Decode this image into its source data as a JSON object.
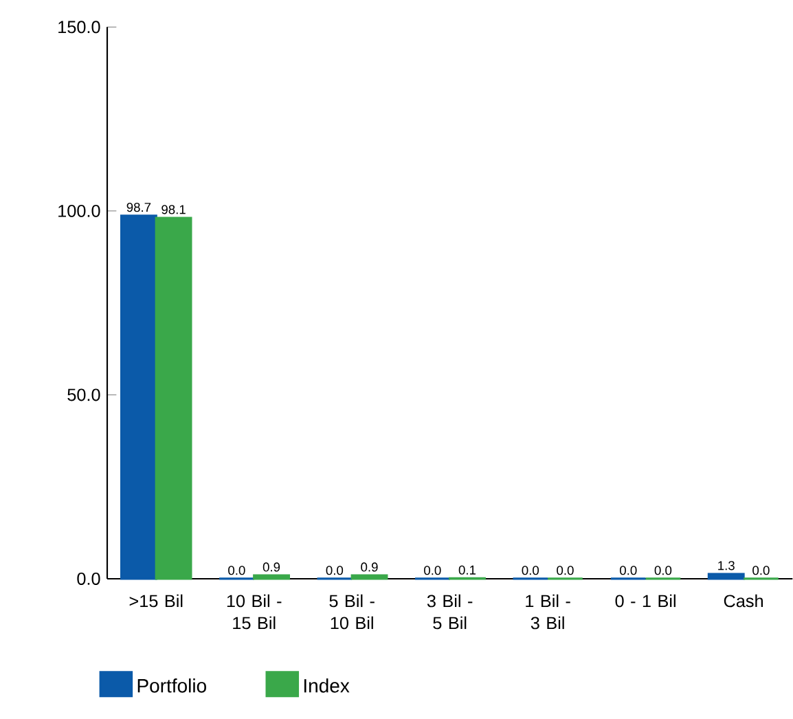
{
  "chart_data": {
    "type": "bar",
    "categories": [
      ">15 Bil",
      "10 Bil - 15 Bil",
      "5 Bil - 10 Bil",
      "3 Bil - 5 Bil",
      "1 Bil - 3 Bil",
      "0 - 1 Bil",
      "Cash"
    ],
    "series": [
      {
        "name": "Portfolio",
        "color": "#0b5aa9",
        "values": [
          98.7,
          0.0,
          0.0,
          0.0,
          0.0,
          0.0,
          1.3
        ],
        "value_labels": [
          "98.7",
          "0.0",
          "0.0",
          "0.0",
          "0.0",
          "0.0",
          "1.3"
        ]
      },
      {
        "name": "Index",
        "color": "#3aa84a",
        "values": [
          98.1,
          0.9,
          0.9,
          0.1,
          0.0,
          0.0,
          0.0
        ],
        "value_labels": [
          "98.1",
          "0.9",
          "0.9",
          "0.1",
          "0.0",
          "0.0",
          "0.0"
        ]
      }
    ],
    "ylim": [
      0,
      150
    ],
    "yticks": [
      {
        "value": 0,
        "label": "0.0"
      },
      {
        "value": 50,
        "label": "50.0"
      },
      {
        "value": 100,
        "label": "100.0"
      },
      {
        "value": 150,
        "label": "150.0"
      }
    ],
    "grid": false,
    "legend": "bottom left"
  }
}
